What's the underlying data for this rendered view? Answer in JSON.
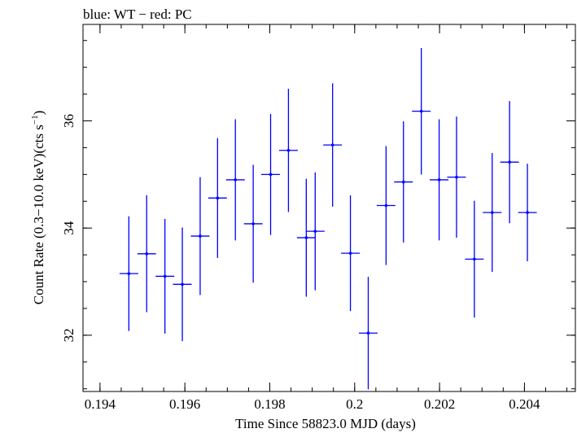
{
  "chart_data": {
    "type": "scatter",
    "title": "blue: WT − red: PC",
    "xlabel": "Time Since 58823.0 MJD (days)",
    "ylabel_main": "Count Rate (0.3−10.0 keV)(cts s",
    "ylabel_sup": "−1",
    "ylabel_close": ")",
    "xlim": [
      0.1936,
      0.2052
    ],
    "ylim": [
      30.95,
      37.8
    ],
    "xticks": [
      0.194,
      0.196,
      0.198,
      0.2,
      0.202,
      0.204
    ],
    "xtick_labels": [
      "0.194",
      "0.196",
      "0.198",
      "0.2",
      "0.202",
      "0.204"
    ],
    "yticks": [
      32,
      34,
      36
    ],
    "ytick_labels": [
      "32",
      "34",
      "36"
    ],
    "grid": false,
    "series": [
      {
        "color": "#0000ff",
        "points": [
          {
            "x": 0.19468,
            "xerr": 0.00022,
            "y": 33.15,
            "yerr": 1.07
          },
          {
            "x": 0.1951,
            "xerr": 0.00022,
            "y": 33.52,
            "yerr": 1.09
          },
          {
            "x": 0.19553,
            "xerr": 0.00022,
            "y": 33.1,
            "yerr": 1.07
          },
          {
            "x": 0.19594,
            "xerr": 0.00022,
            "y": 32.95,
            "yerr": 1.06
          },
          {
            "x": 0.19636,
            "xerr": 0.00022,
            "y": 33.85,
            "yerr": 1.1
          },
          {
            "x": 0.19677,
            "xerr": 0.00022,
            "y": 34.56,
            "yerr": 1.12
          },
          {
            "x": 0.19719,
            "xerr": 0.00022,
            "y": 34.9,
            "yerr": 1.13
          },
          {
            "x": 0.19761,
            "xerr": 0.00022,
            "y": 34.08,
            "yerr": 1.1
          },
          {
            "x": 0.19802,
            "xerr": 0.00022,
            "y": 35.0,
            "yerr": 1.13
          },
          {
            "x": 0.19844,
            "xerr": 0.00022,
            "y": 35.45,
            "yerr": 1.15
          },
          {
            "x": 0.19886,
            "xerr": 0.00022,
            "y": 33.82,
            "yerr": 1.1
          },
          {
            "x": 0.19907,
            "xerr": 0.00022,
            "y": 33.94,
            "yerr": 1.1
          },
          {
            "x": 0.19948,
            "xerr": 0.00022,
            "y": 35.55,
            "yerr": 1.15
          },
          {
            "x": 0.1999,
            "xerr": 0.00022,
            "y": 33.53,
            "yerr": 1.08
          },
          {
            "x": 0.20032,
            "xerr": 0.00022,
            "y": 32.04,
            "yerr": 1.05
          },
          {
            "x": 0.20074,
            "xerr": 0.00022,
            "y": 34.42,
            "yerr": 1.11
          },
          {
            "x": 0.20115,
            "xerr": 0.00022,
            "y": 34.86,
            "yerr": 1.13
          },
          {
            "x": 0.20157,
            "xerr": 0.00022,
            "y": 36.18,
            "yerr": 1.18
          },
          {
            "x": 0.20199,
            "xerr": 0.00022,
            "y": 34.9,
            "yerr": 1.13
          },
          {
            "x": 0.2024,
            "xerr": 0.00022,
            "y": 34.95,
            "yerr": 1.13
          },
          {
            "x": 0.20282,
            "xerr": 0.00022,
            "y": 33.42,
            "yerr": 1.09
          },
          {
            "x": 0.20324,
            "xerr": 0.00022,
            "y": 34.29,
            "yerr": 1.11
          },
          {
            "x": 0.20365,
            "xerr": 0.00022,
            "y": 35.23,
            "yerr": 1.14
          },
          {
            "x": 0.20407,
            "xerr": 0.00022,
            "y": 34.29,
            "yerr": 0.91
          }
        ]
      }
    ]
  }
}
